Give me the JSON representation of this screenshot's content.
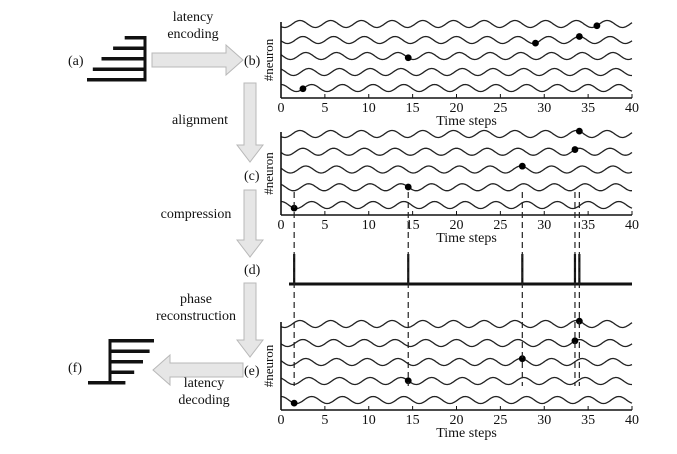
{
  "labels": {
    "a": "(a)",
    "b": "(b)",
    "c": "(c)",
    "d": "(d)",
    "e": "(e)",
    "f": "(f)"
  },
  "steps": {
    "encoding_line1": "latency",
    "encoding_line2": "encoding",
    "alignment": "alignment",
    "compression": "compression",
    "reconstruction_line1": "phase",
    "reconstruction_line2": "reconstruction",
    "decoding_line1": "latency",
    "decoding_line2": "decoding"
  },
  "axis": {
    "ylabel": "#neuron",
    "xlabel": "Time steps",
    "ticks": [
      "0",
      "5",
      "10",
      "15",
      "20",
      "25",
      "30",
      "35",
      "40"
    ],
    "xmin": 0,
    "xmax": 40
  },
  "input_bars": [
    0.35,
    0.55,
    0.75,
    0.9,
    1.0
  ],
  "output_bars": [
    0.35,
    0.55,
    0.75,
    0.9,
    1.0
  ],
  "panel_b_spikes": [
    {
      "neuron": 1,
      "t": 2.5
    },
    {
      "neuron": 3,
      "t": 14.5
    },
    {
      "neuron": 4,
      "t": 29
    },
    {
      "neuron": 4,
      "t": 34
    },
    {
      "neuron": 5,
      "t": 36
    }
  ],
  "panel_c_spikes": [
    {
      "neuron": 1,
      "t": 1.5
    },
    {
      "neuron": 2,
      "t": 14.5
    },
    {
      "neuron": 3,
      "t": 27.5
    },
    {
      "neuron": 4,
      "t": 33.5
    },
    {
      "neuron": 5,
      "t": 34
    }
  ],
  "compressed_spikes": [
    1.5,
    14.5,
    27.5,
    33.5,
    34
  ]
}
